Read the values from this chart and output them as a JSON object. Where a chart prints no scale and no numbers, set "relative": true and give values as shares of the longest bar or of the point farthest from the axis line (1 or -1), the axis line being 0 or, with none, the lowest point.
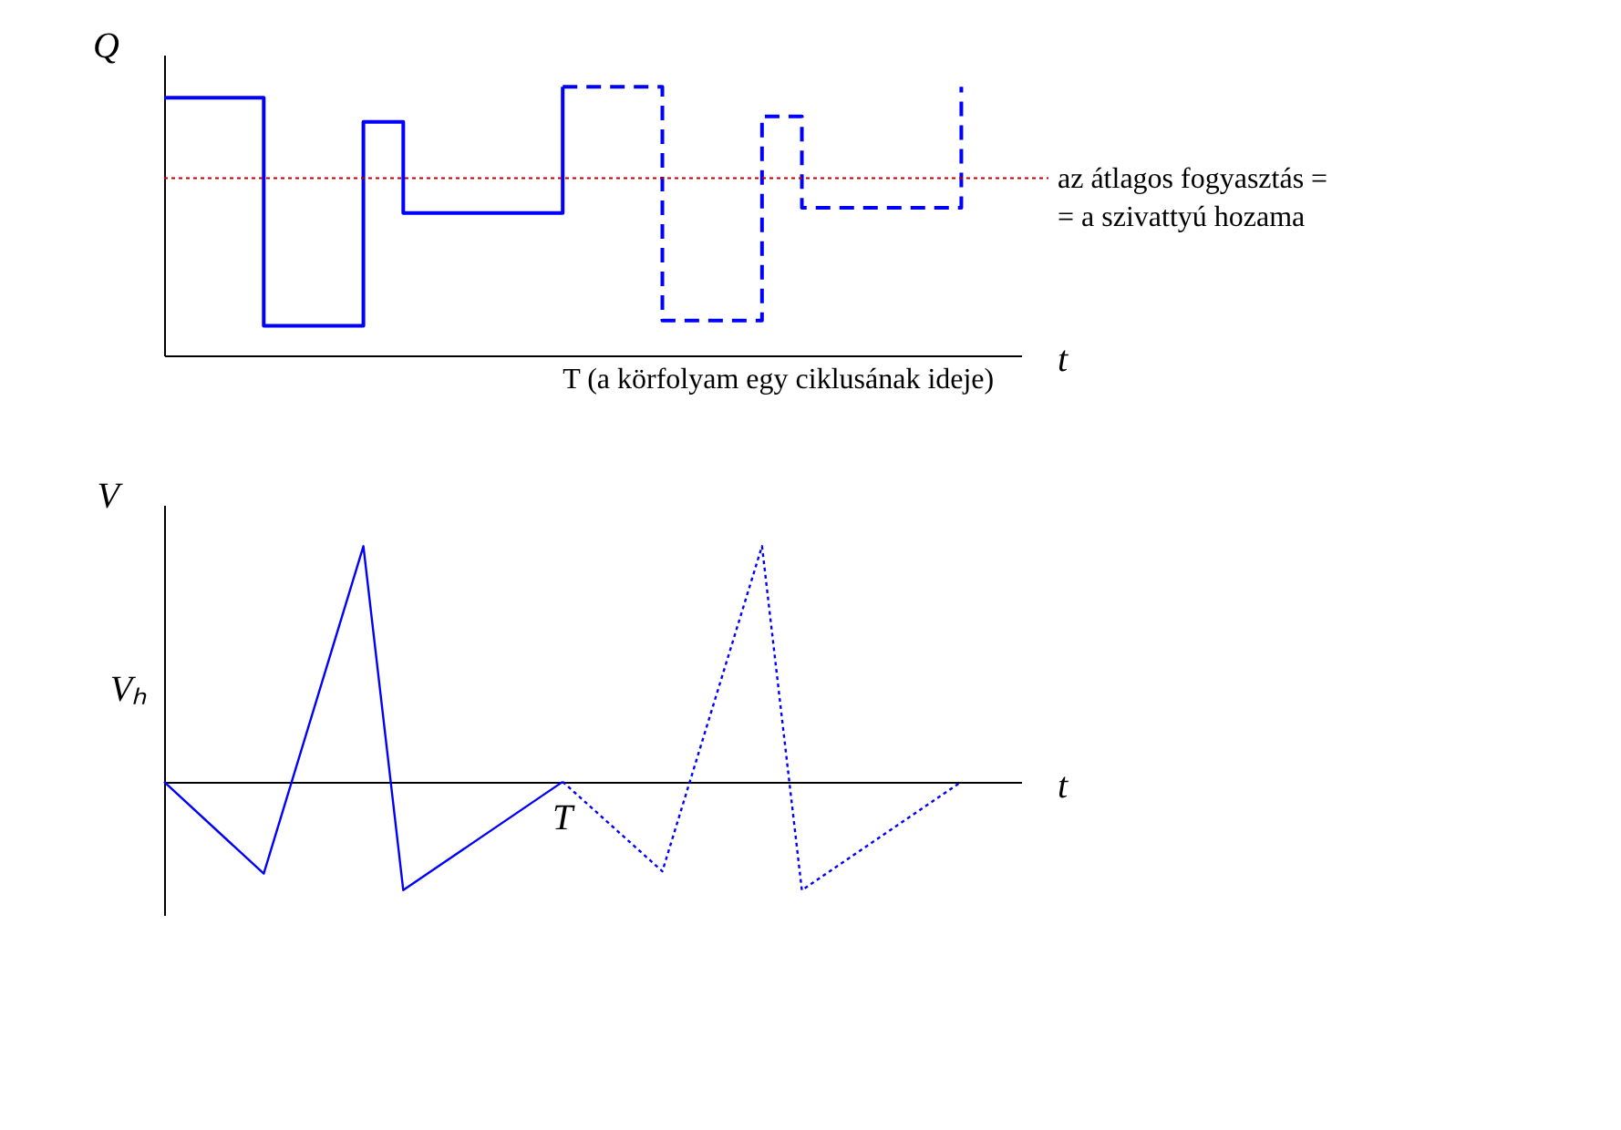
{
  "chart_data": [
    {
      "type": "step",
      "relative": true,
      "xlabel": "t",
      "ylabel": "Q",
      "categories": [
        null,
        null,
        null,
        null,
        null,
        null,
        null,
        null,
        null,
        null,
        null,
        null,
        null,
        null,
        null,
        null,
        null,
        null,
        null,
        null,
        null,
        null,
        null,
        null,
        null,
        null,
        null,
        null,
        null,
        null,
        null,
        null,
        null,
        null,
        null,
        null,
        null,
        null,
        null,
        null,
        null,
        null,
        null,
        null
      ],
      "series": [
        {
          "values": [
            0.96,
            0.96,
            0.96,
            0.96,
            0.96,
            0.11,
            0.11,
            0.11,
            0.11,
            0.11,
            0.87,
            0.87,
            0.53,
            0.53,
            0.53,
            0.53,
            0.53,
            0.53,
            0.53,
            0.53,
            1.0,
            null,
            null,
            null,
            null,
            null,
            null,
            null,
            null,
            null,
            null,
            null,
            null,
            null,
            null,
            null,
            null,
            null,
            null,
            null,
            null,
            null,
            null,
            null
          ],
          "color": "#0000ff",
          "line_style": "solid"
        },
        {
          "values": [
            null,
            null,
            null,
            null,
            null,
            null,
            null,
            null,
            null,
            null,
            null,
            null,
            null,
            null,
            null,
            null,
            null,
            null,
            null,
            null,
            1.0,
            1.0,
            1.0,
            1.0,
            1.0,
            0.13,
            0.13,
            0.13,
            0.13,
            0.13,
            0.89,
            0.89,
            0.55,
            0.55,
            0.55,
            0.55,
            0.55,
            0.55,
            0.55,
            0.55,
            1.0,
            null,
            null,
            null
          ],
          "color": "#0000ff",
          "line_style": "dashed"
        }
      ],
      "ref_lines": [
        {
          "axis": "y",
          "value": 0.66,
          "label": "az átlagos fogyasztás =\n= a szivattyú hozama",
          "color": "#c00000",
          "line_style": "dotted"
        }
      ],
      "annotations": [
        "T (a körfolyam egy ciklusának ideje)"
      ]
    },
    {
      "type": "line",
      "relative": true,
      "xlabel": "t",
      "ylabel": "V",
      "categories": [
        null,
        null,
        null,
        null,
        null,
        null,
        null,
        null,
        null,
        null,
        null,
        null,
        null,
        null,
        null,
        null,
        null,
        null,
        null,
        null,
        null,
        null,
        null,
        null,
        null,
        null,
        null,
        null,
        null,
        null,
        null,
        null,
        null,
        null,
        null,
        null,
        null,
        null,
        null,
        null,
        null,
        null,
        null,
        null
      ],
      "series": [
        {
          "values": [
            0,
            null,
            null,
            null,
            null,
            -0.39,
            null,
            null,
            null,
            null,
            1,
            null,
            -0.46,
            null,
            null,
            null,
            null,
            null,
            null,
            null,
            0,
            null,
            null,
            null,
            null,
            null,
            null,
            null,
            null,
            null,
            null,
            null,
            null,
            null,
            null,
            null,
            null,
            null,
            null,
            null,
            null,
            null,
            null,
            null
          ],
          "color": "#0000ff",
          "line_style": "solid"
        },
        {
          "values": [
            null,
            null,
            null,
            null,
            null,
            null,
            null,
            null,
            null,
            null,
            null,
            null,
            null,
            null,
            null,
            null,
            null,
            null,
            null,
            null,
            0,
            null,
            null,
            null,
            null,
            -0.38,
            null,
            null,
            null,
            null,
            1,
            null,
            -0.46,
            null,
            null,
            null,
            null,
            null,
            null,
            null,
            0,
            null,
            null,
            null
          ],
          "color": "#0000ff",
          "line_style": "dotted"
        }
      ],
      "annotations": [
        "T",
        "Vₕ"
      ]
    }
  ]
}
